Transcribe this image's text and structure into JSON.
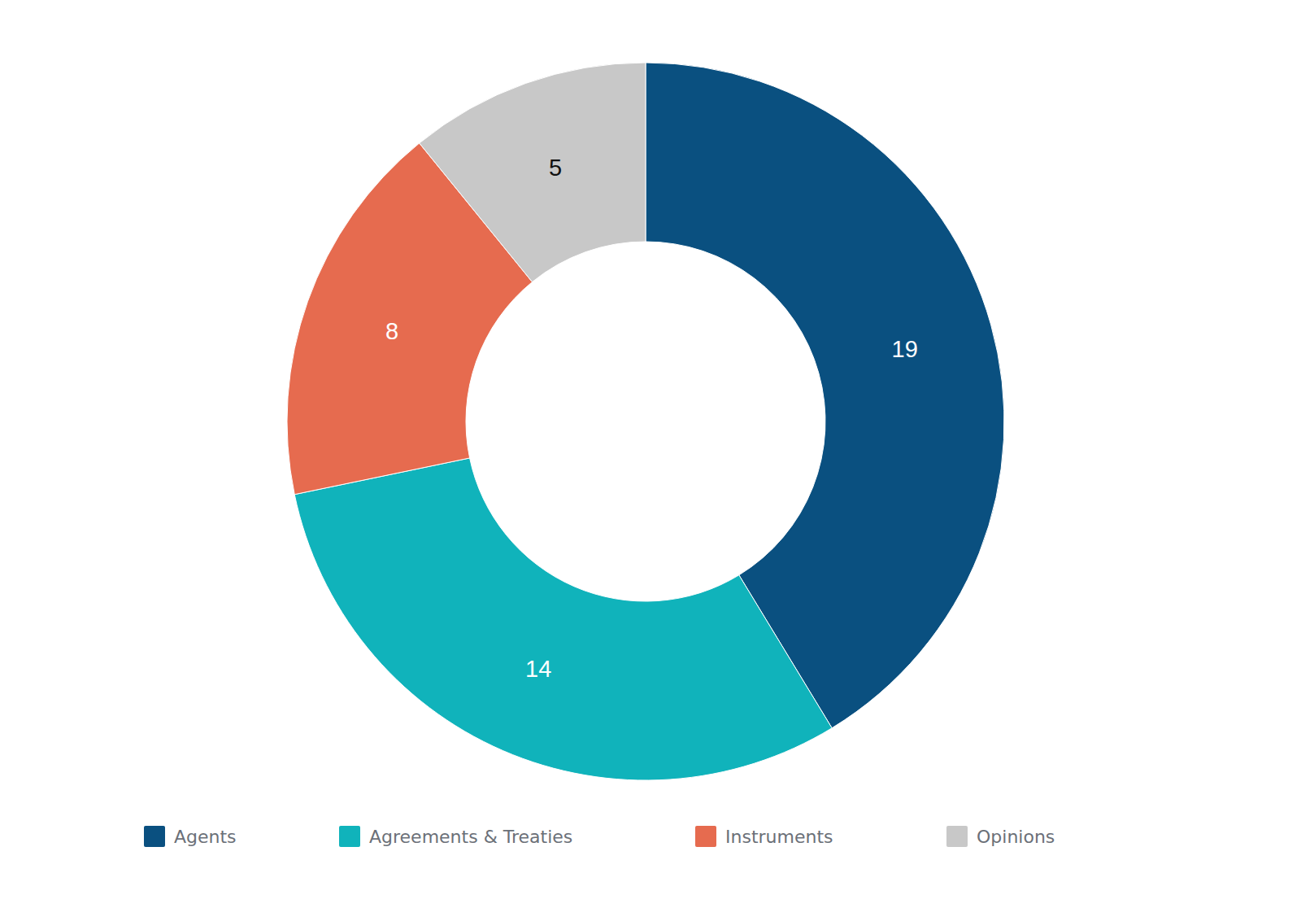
{
  "chart_data": {
    "type": "donut",
    "categories": [
      "Agents",
      "Agreements & Treaties",
      "Instruments",
      "Opinions"
    ],
    "values": [
      19,
      14,
      8,
      5
    ],
    "colors": [
      "#0a5080",
      "#10b3bb",
      "#e66b4f",
      "#c8c8c8"
    ],
    "data_labels": true,
    "legend": "bottom"
  }
}
